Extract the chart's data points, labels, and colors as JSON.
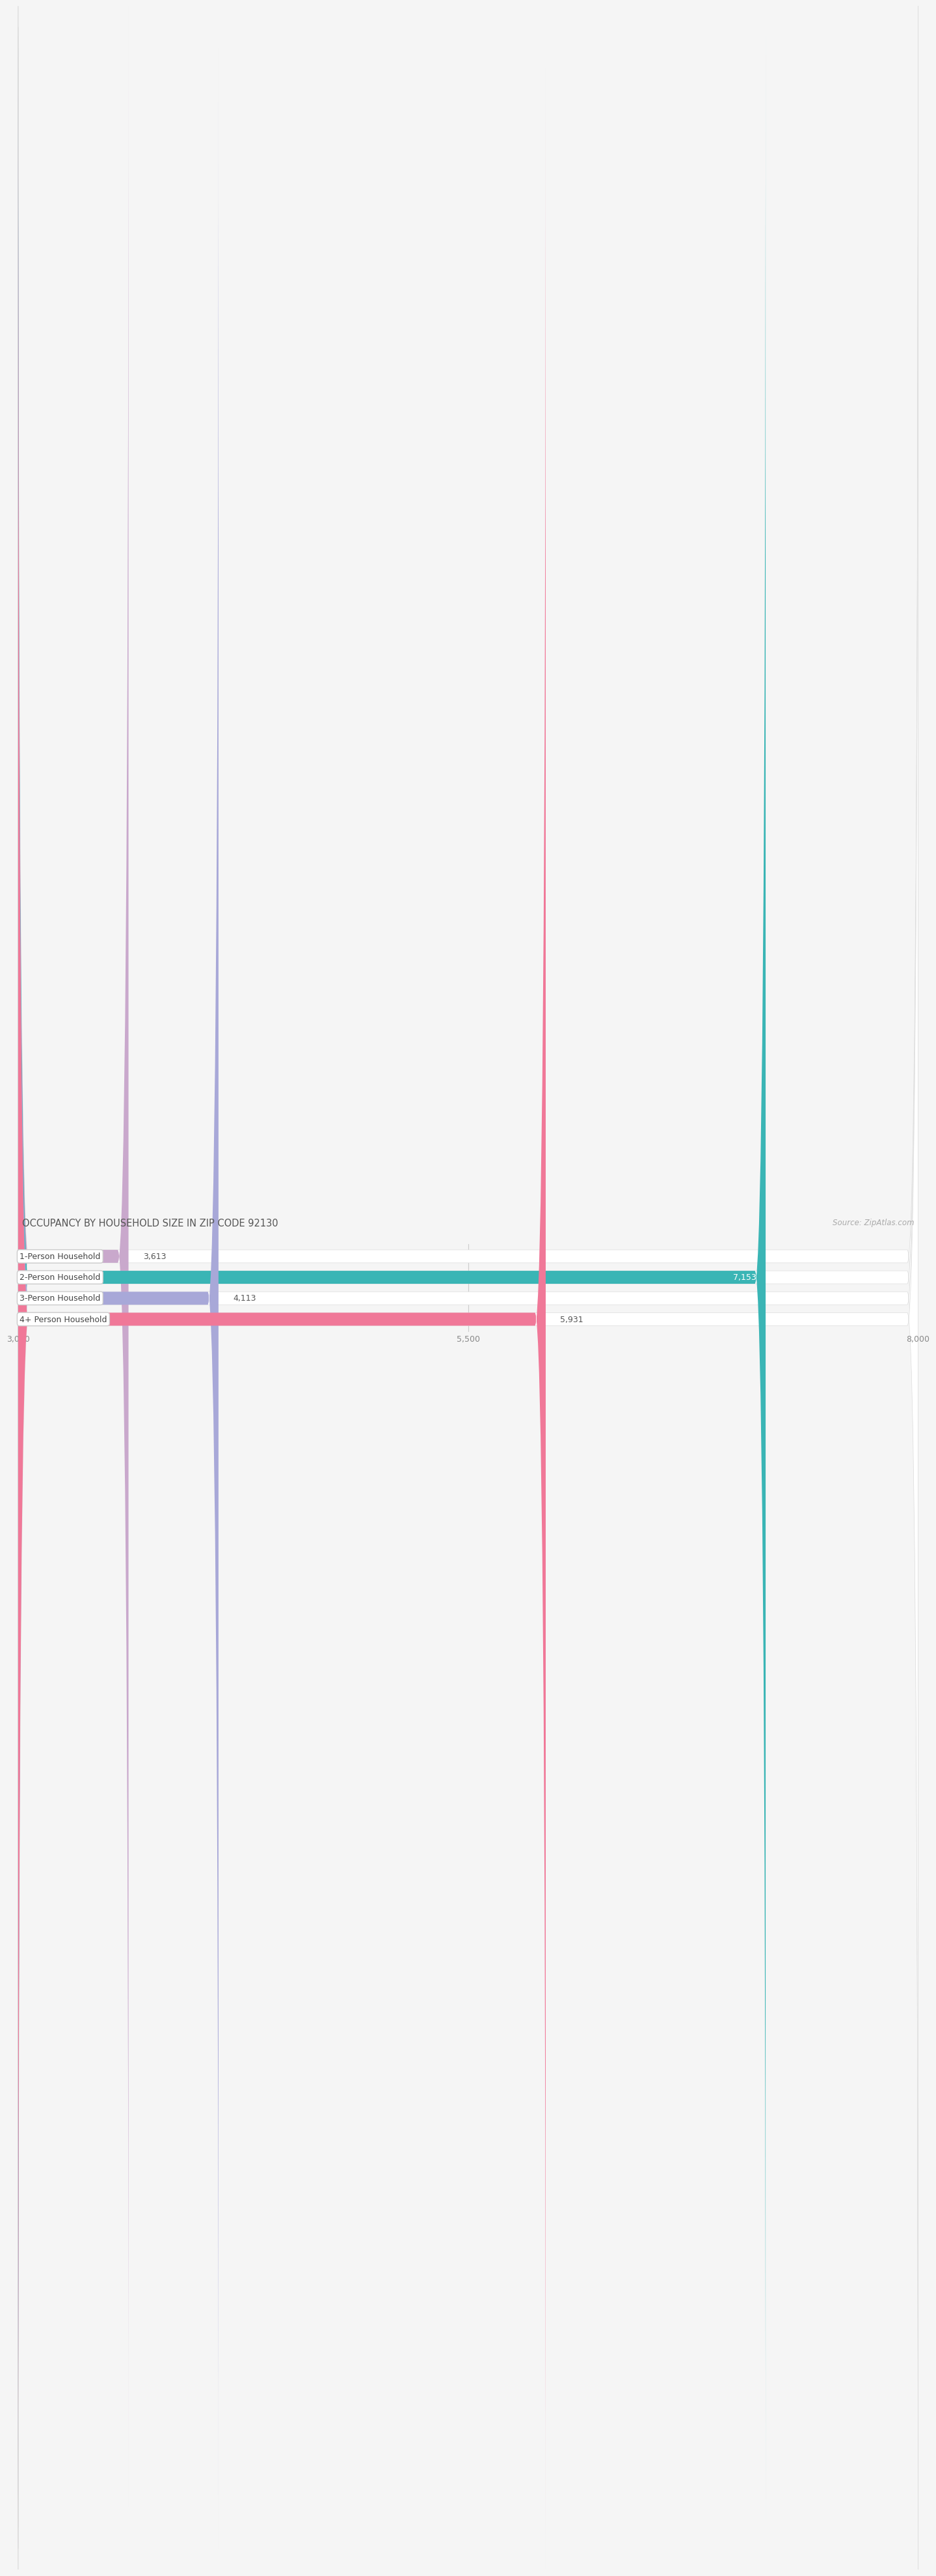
{
  "title": "OCCUPANCY BY HOUSEHOLD SIZE IN ZIP CODE 92130",
  "source": "Source: ZipAtlas.com",
  "categories": [
    "1-Person Household",
    "2-Person Household",
    "3-Person Household",
    "4+ Person Household"
  ],
  "values": [
    3613,
    7153,
    4113,
    5931
  ],
  "bar_colors": [
    "#c9a8cc",
    "#3ab5b5",
    "#a8a8d8",
    "#f07898"
  ],
  "value_inside": [
    false,
    true,
    false,
    false
  ],
  "xlim": [
    3000,
    8000
  ],
  "xticks": [
    3000,
    5500,
    8000
  ],
  "page_bg_color": "#f5f5f5",
  "bar_bg_color": "#e8e8e8",
  "bar_row_bg": "#ffffff",
  "title_fontsize": 10.5,
  "source_fontsize": 8.5,
  "label_fontsize": 9,
  "value_fontsize": 9,
  "tick_fontsize": 9,
  "bar_height": 0.62,
  "bar_rounding": 12
}
